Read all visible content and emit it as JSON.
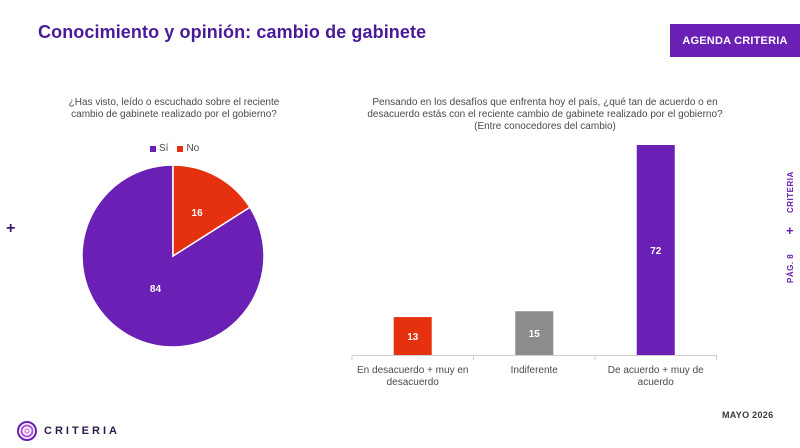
{
  "header": {
    "title": "Conocimiento y opinión: cambio de gabinete",
    "badge": "AGENDA CRITERIA"
  },
  "side": {
    "brand": "CRITERIA",
    "page": "PÁG. 8"
  },
  "footer": {
    "date": "MAYO 2026",
    "logo_text": "CRITERIA"
  },
  "colors": {
    "purple": "#6a1fb5",
    "red": "#e5310e",
    "gray": "#8c8c8c",
    "title": "#4a1a9c"
  },
  "chart_data": [
    {
      "type": "pie",
      "title": "¿Has visto, leído o escuchado sobre el reciente cambio de gabinete realizado por el gobierno?",
      "legend": [
        "Sí",
        "No"
      ],
      "legend_position": "top",
      "categories": [
        "Sí",
        "No"
      ],
      "values": [
        84,
        16
      ]
    },
    {
      "type": "bar",
      "title": "Pensando en los desafíos que enfrenta hoy el país, ¿qué tan de acuerdo o en desacuerdo estás con el reciente cambio de gabinete realizado por el gobierno? (Entre conocedores del cambio)",
      "categories": [
        "En desacuerdo + muy en desacuerdo",
        "Indiferente",
        "De acuerdo + muy de acuerdo"
      ],
      "values": [
        13,
        15,
        72
      ],
      "ylim": [
        0,
        72
      ],
      "grid": false
    }
  ]
}
